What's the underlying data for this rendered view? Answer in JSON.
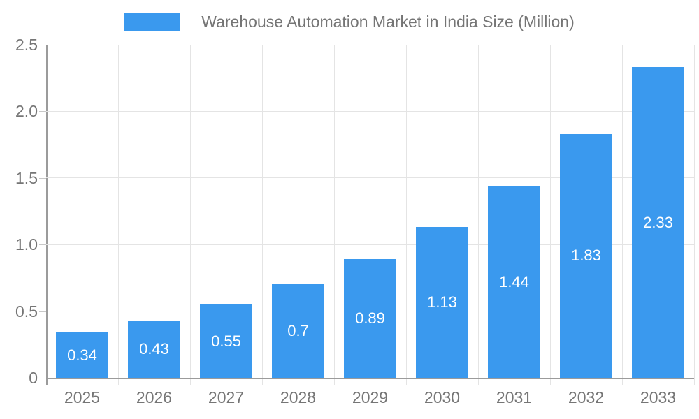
{
  "chart_data": {
    "type": "bar",
    "title": "Warehouse Automation Market in India Size (Million)",
    "legend_position": "top",
    "categories": [
      "2025",
      "2026",
      "2027",
      "2028",
      "2029",
      "2030",
      "2031",
      "2032",
      "2033"
    ],
    "series": [
      {
        "name": "Warehouse Automation Market in India Size (Million)",
        "values": [
          0.34,
          0.43,
          0.55,
          0.7,
          0.89,
          1.13,
          1.44,
          1.83,
          2.33
        ]
      }
    ],
    "bar_labels": [
      "0.34",
      "0.43",
      "0.55",
      "0.7",
      "0.89",
      "1.13",
      "1.44",
      "1.83",
      "2.33"
    ],
    "xlabel": "",
    "ylabel": "",
    "ylim": [
      0,
      2.5
    ],
    "yticks": [
      0,
      0.5,
      1,
      1.5,
      2,
      2.5
    ],
    "ytick_labels": [
      "0",
      "0.5",
      "1.0",
      "1.5",
      "2.0",
      "2.5"
    ],
    "grid": true,
    "style": {
      "bar_color": "#3a99ee",
      "bar_label_color": "#ffffff",
      "axis_text_color": "#757575",
      "legend_text_color": "#757575",
      "grid_color": "#e4e4e4",
      "axis_line_color": "#9b9b9b",
      "tick_color": "#c8c8c8",
      "background": "#ffffff"
    }
  }
}
